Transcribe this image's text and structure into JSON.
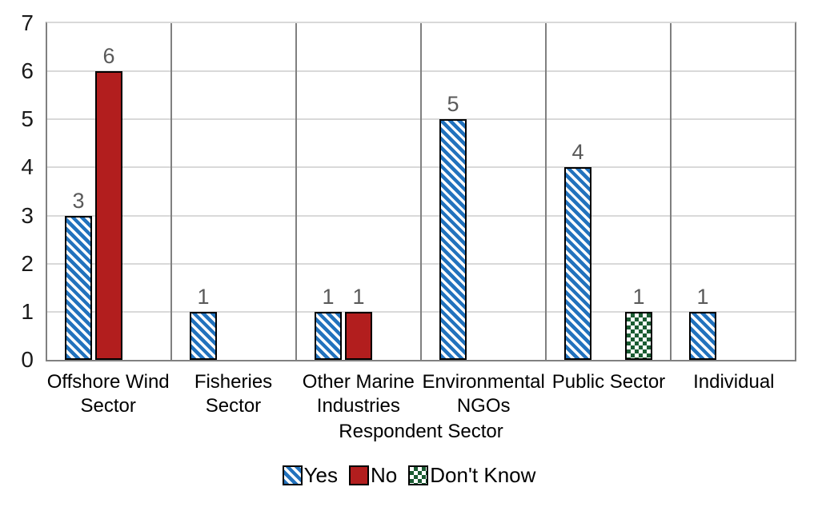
{
  "chart_data": {
    "type": "bar",
    "title": "",
    "xlabel": "Respondent Sector",
    "ylabel": "",
    "categories": [
      "Offshore Wind Sector",
      "Fisheries Sector",
      "Other Marine Industries",
      "Environmental NGOs",
      "Public Sector",
      "Individual"
    ],
    "series": [
      {
        "name": "Yes",
        "fill": "diagonal-stripe",
        "color": "#2272BD",
        "values": [
          3,
          1,
          1,
          5,
          4,
          1
        ]
      },
      {
        "name": "No",
        "fill": "solid",
        "color": "#B21E1E",
        "values": [
          6,
          0,
          1,
          0,
          0,
          0
        ]
      },
      {
        "name": "Don't Know",
        "fill": "checker",
        "color": "#1A5C32",
        "values": [
          0,
          0,
          0,
          0,
          1,
          0
        ]
      }
    ],
    "ylim": [
      0,
      7
    ],
    "yticks": [
      "0",
      "1",
      "2",
      "3",
      "4",
      "5",
      "6",
      "7"
    ],
    "grid": "horizontal gridlines + vertical category separators",
    "legend_position": "bottom",
    "colors": {
      "axis_line": "#808080",
      "gridline": "#D9D9D9",
      "data_label": "#595959",
      "tick_label": "#1A1A1A",
      "bar_border": "#000000",
      "background": "#FFFFFF"
    }
  }
}
